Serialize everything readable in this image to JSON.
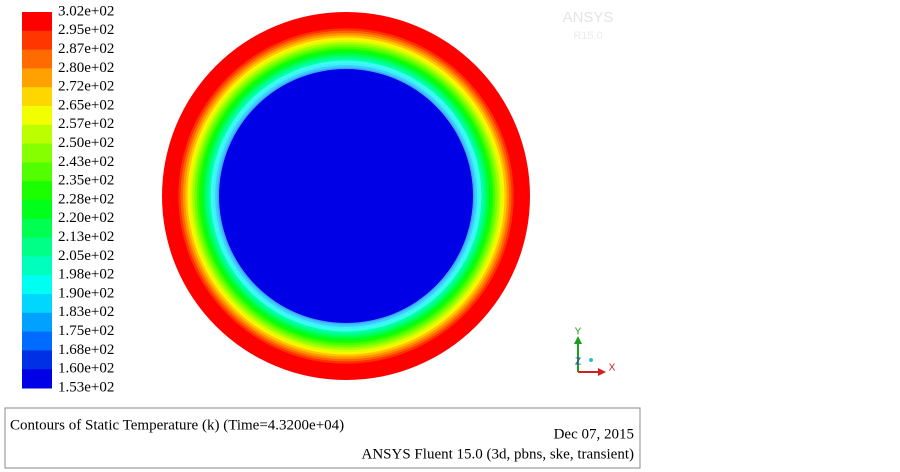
{
  "colorbar": {
    "labels": [
      "3.02e+02",
      "2.95e+02",
      "2.87e+02",
      "2.80e+02",
      "2.72e+02",
      "2.65e+02",
      "2.57e+02",
      "2.50e+02",
      "2.43e+02",
      "2.35e+02",
      "2.28e+02",
      "2.20e+02",
      "2.13e+02",
      "2.05e+02",
      "1.98e+02",
      "1.90e+02",
      "1.83e+02",
      "1.75e+02",
      "1.68e+02",
      "1.60e+02",
      "1.53e+02"
    ]
  },
  "watermark": {
    "name": "ANSYS",
    "version": "R15.0"
  },
  "axes": {
    "y": "Y",
    "z": "Z",
    "x": "X"
  },
  "footer": {
    "title": "Contours of Static Temperature (k) (Time=4.3200e+04)",
    "date": "Dec 07, 2015",
    "version": "ANSYS Fluent 15.0 (3d, pbns, ske, transient)"
  }
}
